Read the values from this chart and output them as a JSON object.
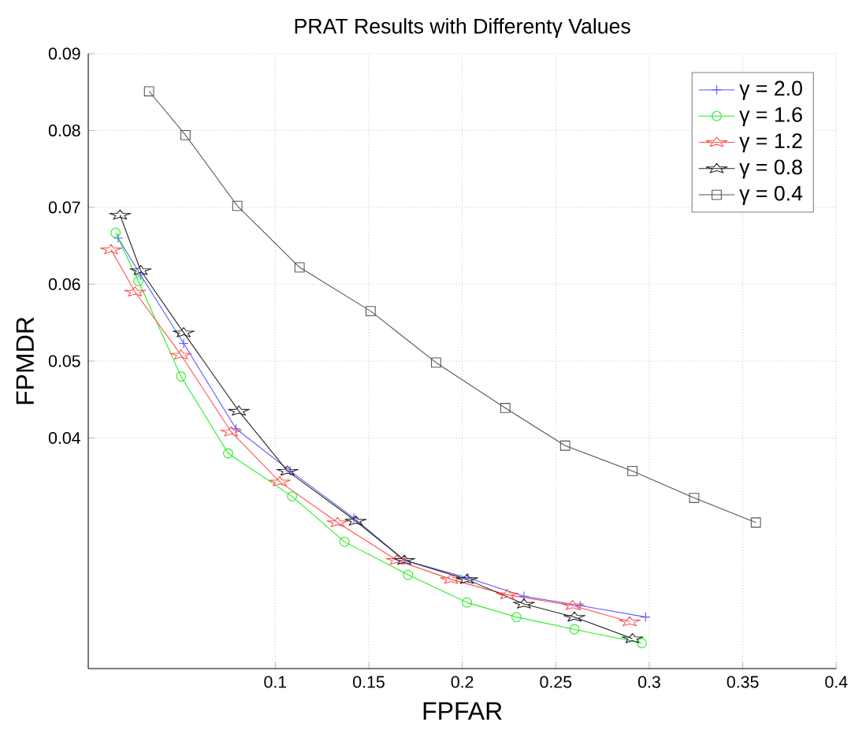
{
  "chart_data": {
    "type": "line",
    "title": "PRAT Results with Differentγ Values",
    "xlabel": "FPFAR",
    "ylabel": "FPMDR",
    "xlim": [
      0,
      0.4
    ],
    "ylim": [
      0.01,
      0.09
    ],
    "xticks": [
      0.1,
      0.15,
      0.2,
      0.25,
      0.3,
      0.35,
      0.4
    ],
    "yticks": [
      0.04,
      0.05,
      0.06,
      0.07,
      0.08,
      0.09
    ],
    "grid": true,
    "legend": "top right",
    "line_style": "solid",
    "series": [
      {
        "name": "γ = 2.0",
        "color": "#5555ff",
        "marker": "cross",
        "x": [
          0.016,
          0.028,
          0.051,
          0.079,
          0.108,
          0.142,
          0.169,
          0.203,
          0.233,
          0.263,
          0.298
        ],
        "values": [
          0.066,
          0.0612,
          0.0523,
          0.0412,
          0.0357,
          0.0296,
          0.0241,
          0.0218,
          0.0194,
          0.0182,
          0.0167
        ]
      },
      {
        "name": "γ = 1.6",
        "color": "#22ee22",
        "marker": "circle",
        "x": [
          0.0146,
          0.0268,
          0.0496,
          0.0748,
          0.109,
          0.137,
          0.171,
          0.2025,
          0.229,
          0.26,
          0.296
        ],
        "values": [
          0.0667,
          0.0604,
          0.048,
          0.038,
          0.0324,
          0.0265,
          0.0222,
          0.0186,
          0.0167,
          0.0151,
          0.0133
        ]
      },
      {
        "name": "γ = 1.2",
        "color": "#ff5050",
        "marker": "star",
        "x": [
          0.0122,
          0.025,
          0.0496,
          0.0764,
          0.1024,
          0.1333,
          0.165,
          0.194,
          0.224,
          0.259,
          0.2895
        ],
        "values": [
          0.0645,
          0.059,
          0.0508,
          0.0408,
          0.0343,
          0.029,
          0.0241,
          0.0216,
          0.0196,
          0.0182,
          0.0161
        ]
      },
      {
        "name": "γ = 0.8",
        "color": "#222222",
        "marker": "star",
        "x": [
          0.017,
          0.028,
          0.051,
          0.0805,
          0.1065,
          0.143,
          0.169,
          0.2025,
          0.233,
          0.26,
          0.291
        ],
        "values": [
          0.069,
          0.0618,
          0.0537,
          0.0435,
          0.0357,
          0.0292,
          0.0241,
          0.0216,
          0.0184,
          0.0167,
          0.0139
        ]
      },
      {
        "name": "γ = 0.4",
        "color": "#555555",
        "marker": "square",
        "x": [
          0.0325,
          0.052,
          0.0797,
          0.113,
          0.151,
          0.186,
          0.223,
          0.255,
          0.291,
          0.324,
          0.357
        ],
        "values": [
          0.0851,
          0.0794,
          0.0702,
          0.0622,
          0.0565,
          0.0498,
          0.0439,
          0.039,
          0.0357,
          0.0322,
          0.029
        ]
      }
    ]
  }
}
